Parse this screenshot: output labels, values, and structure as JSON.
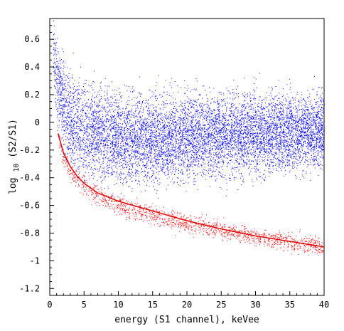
{
  "chart_data": {
    "type": "scatter",
    "title": "",
    "xlabel": "energy (S1 channel), keVee",
    "ylabel_main": "log",
    "ylabel_subscript": "10",
    "ylabel_rest": "(S2/S1)",
    "xlim": [
      0,
      40
    ],
    "ylim": [
      -1.25,
      0.75
    ],
    "grid": false,
    "legend": "none",
    "x_ticks": [
      {
        "value": 0,
        "label": "0"
      },
      {
        "value": 5,
        "label": "5"
      },
      {
        "value": 10,
        "label": "10"
      },
      {
        "value": 15,
        "label": "15"
      },
      {
        "value": 20,
        "label": "20"
      },
      {
        "value": 25,
        "label": "25"
      },
      {
        "value": 30,
        "label": "30"
      },
      {
        "value": 35,
        "label": "35"
      },
      {
        "value": 40,
        "label": "40"
      }
    ],
    "y_ticks": [
      {
        "value": 0.6,
        "label": "0.6"
      },
      {
        "value": 0.4,
        "label": "0.4"
      },
      {
        "value": 0.2,
        "label": "0.2"
      },
      {
        "value": 0,
        "label": "0"
      },
      {
        "value": -0.2,
        "label": "-0.2"
      },
      {
        "value": -0.4,
        "label": "-0.4"
      },
      {
        "value": -0.6,
        "label": "-0.6"
      },
      {
        "value": -0.8,
        "label": "-0.8"
      },
      {
        "value": -1,
        "label": "-1"
      },
      {
        "value": -1.2,
        "label": "-1.2"
      }
    ],
    "series": [
      {
        "color": "#0000ff",
        "kind": "scatter-band",
        "points": [
          {
            "x": 0.5,
            "center": 0.55,
            "halfwidth": 0.2
          },
          {
            "x": 1,
            "center": 0.3,
            "halfwidth": 0.25
          },
          {
            "x": 2,
            "center": 0.1,
            "halfwidth": 0.3
          },
          {
            "x": 3,
            "center": 0.0,
            "halfwidth": 0.32
          },
          {
            "x": 5,
            "center": -0.06,
            "halfwidth": 0.32
          },
          {
            "x": 8,
            "center": -0.1,
            "halfwidth": 0.3
          },
          {
            "x": 12,
            "center": -0.12,
            "halfwidth": 0.28
          },
          {
            "x": 20,
            "center": -0.1,
            "halfwidth": 0.27
          },
          {
            "x": 30,
            "center": -0.08,
            "halfwidth": 0.26
          },
          {
            "x": 40,
            "center": -0.06,
            "halfwidth": 0.25
          }
        ]
      },
      {
        "color": "#ff0000",
        "kind": "scatter-band",
        "points": [
          {
            "x": 1.2,
            "center": -0.12,
            "halfwidth": 0.08
          },
          {
            "x": 2,
            "center": -0.25,
            "halfwidth": 0.08
          },
          {
            "x": 3,
            "center": -0.36,
            "halfwidth": 0.07
          },
          {
            "x": 5,
            "center": -0.47,
            "halfwidth": 0.07
          },
          {
            "x": 10,
            "center": -0.6,
            "halfwidth": 0.06
          },
          {
            "x": 15,
            "center": -0.67,
            "halfwidth": 0.06
          },
          {
            "x": 20,
            "center": -0.73,
            "halfwidth": 0.06
          },
          {
            "x": 30,
            "center": -0.82,
            "halfwidth": 0.06
          },
          {
            "x": 40,
            "center": -0.9,
            "halfwidth": 0.06
          }
        ]
      },
      {
        "color": "#e00000",
        "kind": "line",
        "points": [
          {
            "x": 1.2,
            "y": -0.08
          },
          {
            "x": 2,
            "y": -0.22
          },
          {
            "x": 3,
            "y": -0.32
          },
          {
            "x": 4,
            "y": -0.39
          },
          {
            "x": 5,
            "y": -0.44
          },
          {
            "x": 7,
            "y": -0.51
          },
          {
            "x": 10,
            "y": -0.57
          },
          {
            "x": 15,
            "y": -0.64
          },
          {
            "x": 20,
            "y": -0.71
          },
          {
            "x": 25,
            "y": -0.77
          },
          {
            "x": 30,
            "y": -0.82
          },
          {
            "x": 35,
            "y": -0.86
          },
          {
            "x": 40,
            "y": -0.9
          }
        ]
      }
    ]
  }
}
